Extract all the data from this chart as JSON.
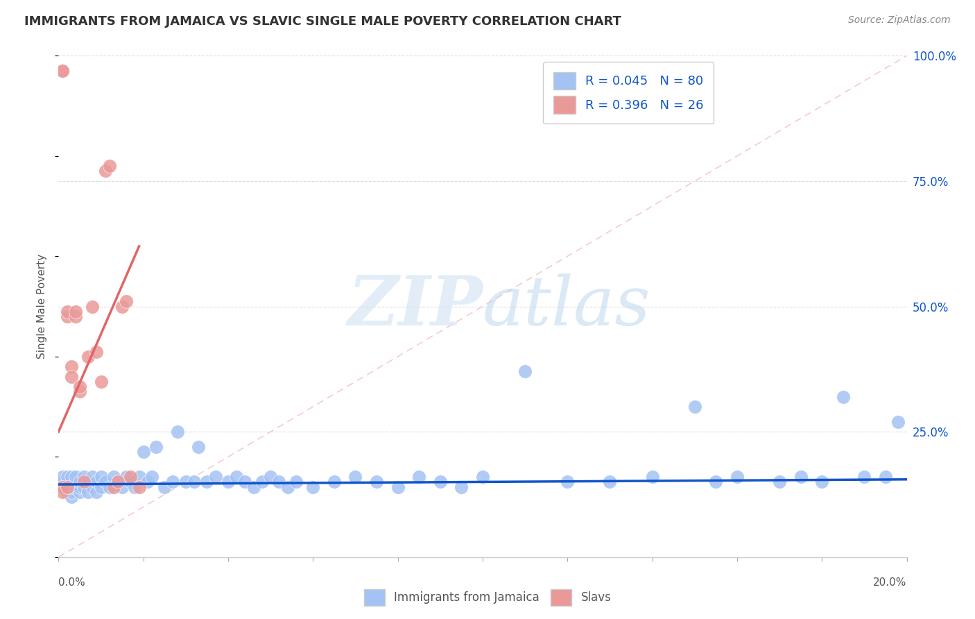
{
  "title": "IMMIGRANTS FROM JAMAICA VS SLAVIC SINGLE MALE POVERTY CORRELATION CHART",
  "source": "Source: ZipAtlas.com",
  "ylabel": "Single Male Poverty",
  "legend1_label": "Immigrants from Jamaica",
  "legend2_label": "Slavs",
  "R1": 0.045,
  "N1": 80,
  "R2": 0.396,
  "N2": 26,
  "color_blue": "#a4c2f4",
  "color_pink": "#ea9999",
  "color_line_blue": "#1155cc",
  "color_line_pink": "#e06666",
  "color_dashed": "#f4cccc",
  "color_right_axis": "#1155cc",
  "watermark_color": "#cfe2f3",
  "ylabel_right_labels": [
    "100.0%",
    "75.0%",
    "50.0%",
    "25.0%"
  ],
  "ylabel_right_values": [
    1.0,
    0.75,
    0.5,
    0.25
  ],
  "xlim": [
    0.0,
    0.2
  ],
  "ylim": [
    0.0,
    1.0
  ],
  "blue_x": [
    0.001,
    0.001,
    0.001,
    0.002,
    0.002,
    0.002,
    0.002,
    0.003,
    0.003,
    0.003,
    0.003,
    0.004,
    0.004,
    0.004,
    0.005,
    0.005,
    0.005,
    0.006,
    0.006,
    0.007,
    0.007,
    0.008,
    0.008,
    0.009,
    0.009,
    0.01,
    0.01,
    0.011,
    0.012,
    0.013,
    0.014,
    0.015,
    0.016,
    0.017,
    0.018,
    0.019,
    0.02,
    0.021,
    0.022,
    0.023,
    0.025,
    0.027,
    0.028,
    0.03,
    0.032,
    0.033,
    0.035,
    0.037,
    0.04,
    0.042,
    0.044,
    0.046,
    0.048,
    0.05,
    0.052,
    0.054,
    0.056,
    0.06,
    0.065,
    0.07,
    0.075,
    0.08,
    0.085,
    0.09,
    0.095,
    0.1,
    0.11,
    0.12,
    0.13,
    0.14,
    0.15,
    0.155,
    0.16,
    0.17,
    0.175,
    0.18,
    0.185,
    0.19,
    0.195,
    0.198
  ],
  "blue_y": [
    0.14,
    0.15,
    0.16,
    0.13,
    0.14,
    0.15,
    0.16,
    0.12,
    0.13,
    0.14,
    0.16,
    0.14,
    0.15,
    0.16,
    0.13,
    0.14,
    0.15,
    0.14,
    0.16,
    0.13,
    0.15,
    0.14,
    0.16,
    0.13,
    0.15,
    0.14,
    0.16,
    0.15,
    0.14,
    0.16,
    0.15,
    0.14,
    0.16,
    0.15,
    0.14,
    0.16,
    0.21,
    0.15,
    0.16,
    0.22,
    0.14,
    0.15,
    0.25,
    0.15,
    0.15,
    0.22,
    0.15,
    0.16,
    0.15,
    0.16,
    0.15,
    0.14,
    0.15,
    0.16,
    0.15,
    0.14,
    0.15,
    0.14,
    0.15,
    0.16,
    0.15,
    0.14,
    0.16,
    0.15,
    0.14,
    0.16,
    0.37,
    0.15,
    0.15,
    0.16,
    0.3,
    0.15,
    0.16,
    0.15,
    0.16,
    0.15,
    0.32,
    0.16,
    0.16,
    0.27
  ],
  "pink_x": [
    0.001,
    0.001,
    0.001,
    0.001,
    0.002,
    0.002,
    0.002,
    0.003,
    0.003,
    0.004,
    0.004,
    0.005,
    0.005,
    0.006,
    0.007,
    0.008,
    0.009,
    0.01,
    0.011,
    0.012,
    0.013,
    0.014,
    0.015,
    0.016,
    0.017,
    0.019
  ],
  "pink_y": [
    0.97,
    0.97,
    0.14,
    0.13,
    0.48,
    0.49,
    0.14,
    0.38,
    0.36,
    0.48,
    0.49,
    0.33,
    0.34,
    0.15,
    0.4,
    0.5,
    0.41,
    0.35,
    0.77,
    0.78,
    0.14,
    0.15,
    0.5,
    0.51,
    0.16,
    0.14
  ],
  "blue_line_x": [
    0.0,
    0.2
  ],
  "blue_line_y": [
    0.145,
    0.155
  ],
  "pink_line_x": [
    0.0,
    0.019
  ],
  "pink_line_y": [
    0.25,
    0.62
  ],
  "dashed_line_x": [
    0.0,
    0.2
  ],
  "dashed_line_y": [
    0.0,
    1.0
  ]
}
